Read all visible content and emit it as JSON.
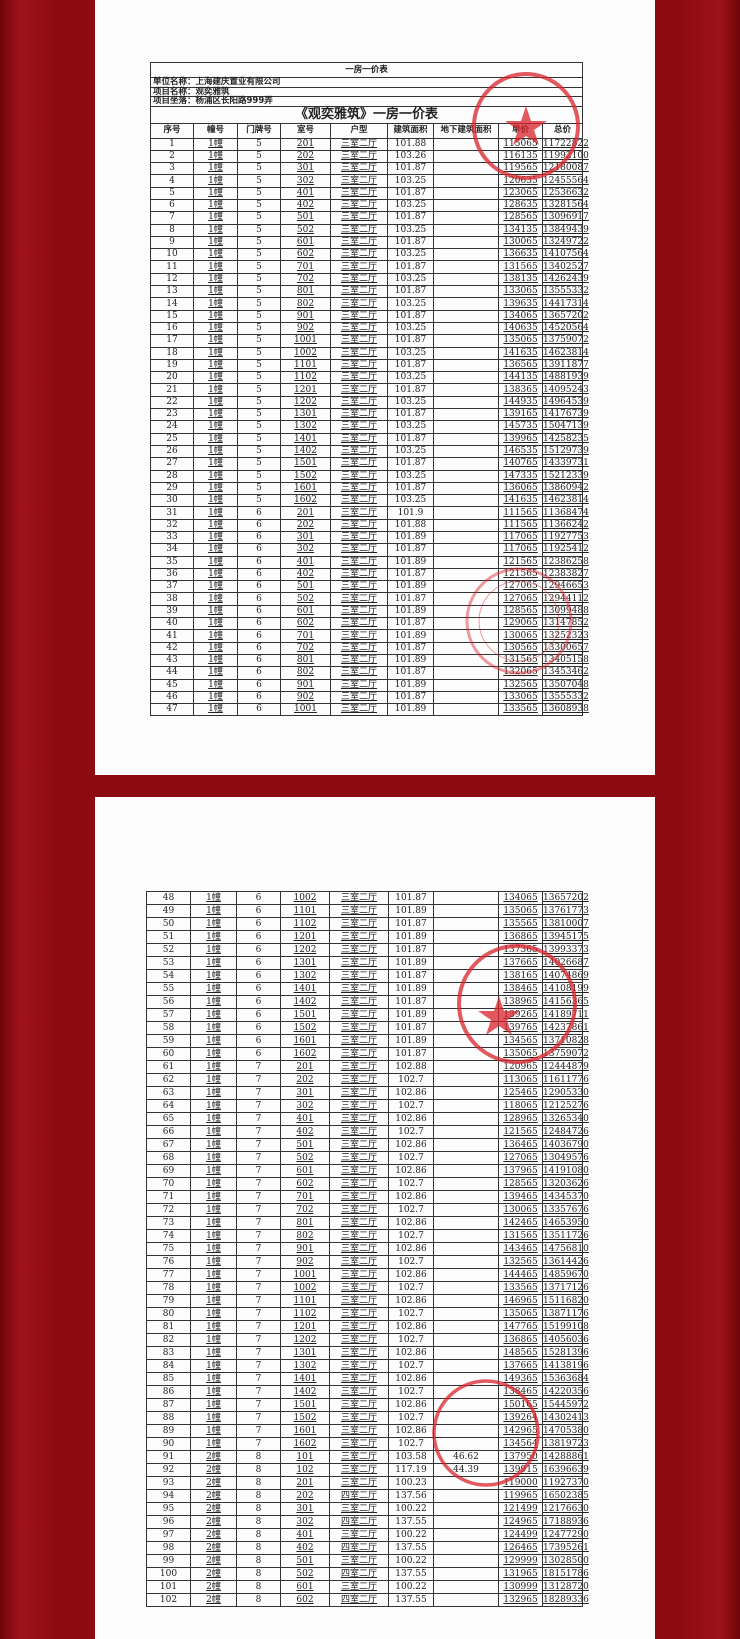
{
  "colors": {
    "background": "#8c0b10",
    "stamp": "#d8232a"
  },
  "header": {
    "sheet_title": "一房一价表",
    "company": "单位名称：上海建庆置业有限公司",
    "project": "项目名称：观奕雅筑",
    "address": "项目坐落：杨浦区长阳路999弄",
    "table_title": "《观奕雅筑》一房一价表"
  },
  "columns": [
    "序号",
    "幢号",
    "门牌号",
    "室号",
    "户型",
    "建筑面积",
    "地下建筑面积",
    "单价",
    "总价"
  ],
  "page1_rows": [
    [
      "1",
      "1幢",
      "5",
      "201",
      "三室二厅",
      "101.88",
      "",
      "115065",
      "11722822"
    ],
    [
      "2",
      "1幢",
      "5",
      "202",
      "三室二厅",
      "103.26",
      "",
      "116135",
      "11992100"
    ],
    [
      "3",
      "1幢",
      "5",
      "301",
      "三室二厅",
      "101.87",
      "",
      "119565",
      "12180087"
    ],
    [
      "4",
      "1幢",
      "5",
      "302",
      "三室二厅",
      "103.25",
      "",
      "120635",
      "12455564"
    ],
    [
      "5",
      "1幢",
      "5",
      "401",
      "三室二厅",
      "101.87",
      "",
      "123065",
      "12536632"
    ],
    [
      "6",
      "1幢",
      "5",
      "402",
      "三室二厅",
      "103.25",
      "",
      "128635",
      "13281564"
    ],
    [
      "7",
      "1幢",
      "5",
      "501",
      "三室二厅",
      "101.87",
      "",
      "128565",
      "13096917"
    ],
    [
      "8",
      "1幢",
      "5",
      "502",
      "三室二厅",
      "103.25",
      "",
      "134135",
      "13849439"
    ],
    [
      "9",
      "1幢",
      "5",
      "601",
      "三室二厅",
      "101.87",
      "",
      "130065",
      "13249722"
    ],
    [
      "10",
      "1幢",
      "5",
      "602",
      "三室二厅",
      "103.25",
      "",
      "136635",
      "14107564"
    ],
    [
      "11",
      "1幢",
      "5",
      "701",
      "三室二厅",
      "101.87",
      "",
      "131565",
      "13402527"
    ],
    [
      "12",
      "1幢",
      "5",
      "702",
      "三室二厅",
      "103.25",
      "",
      "138135",
      "14262439"
    ],
    [
      "13",
      "1幢",
      "5",
      "801",
      "三室二厅",
      "101.87",
      "",
      "133065",
      "13555332"
    ],
    [
      "14",
      "1幢",
      "5",
      "802",
      "三室二厅",
      "103.25",
      "",
      "139635",
      "14417314"
    ],
    [
      "15",
      "1幢",
      "5",
      "901",
      "三室二厅",
      "101.87",
      "",
      "134065",
      "13657202"
    ],
    [
      "16",
      "1幢",
      "5",
      "902",
      "三室二厅",
      "103.25",
      "",
      "140635",
      "14520564"
    ],
    [
      "17",
      "1幢",
      "5",
      "1001",
      "三室二厅",
      "101.87",
      "",
      "135065",
      "13759072"
    ],
    [
      "18",
      "1幢",
      "5",
      "1002",
      "三室二厅",
      "103.25",
      "",
      "141635",
      "14623814"
    ],
    [
      "19",
      "1幢",
      "5",
      "1101",
      "三室二厅",
      "101.87",
      "",
      "136565",
      "13911877"
    ],
    [
      "20",
      "1幢",
      "5",
      "1102",
      "三室二厅",
      "103.25",
      "",
      "144135",
      "14881939"
    ],
    [
      "21",
      "1幢",
      "5",
      "1201",
      "三室二厅",
      "101.87",
      "",
      "138365",
      "14095243"
    ],
    [
      "22",
      "1幢",
      "5",
      "1202",
      "三室二厅",
      "103.25",
      "",
      "144935",
      "14964539"
    ],
    [
      "23",
      "1幢",
      "5",
      "1301",
      "三室二厅",
      "101.87",
      "",
      "139165",
      "14176739"
    ],
    [
      "24",
      "1幢",
      "5",
      "1302",
      "三室二厅",
      "103.25",
      "",
      "145735",
      "15047139"
    ],
    [
      "25",
      "1幢",
      "5",
      "1401",
      "三室二厅",
      "101.87",
      "",
      "139965",
      "14258235"
    ],
    [
      "26",
      "1幢",
      "5",
      "1402",
      "三室二厅",
      "103.25",
      "",
      "146535",
      "15129739"
    ],
    [
      "27",
      "1幢",
      "5",
      "1501",
      "三室二厅",
      "101.87",
      "",
      "140765",
      "14339731"
    ],
    [
      "28",
      "1幢",
      "5",
      "1502",
      "三室二厅",
      "103.25",
      "",
      "147335",
      "15212339"
    ],
    [
      "29",
      "1幢",
      "5",
      "1601",
      "三室二厅",
      "101.87",
      "",
      "136065",
      "13860942"
    ],
    [
      "30",
      "1幢",
      "5",
      "1602",
      "三室二厅",
      "103.25",
      "",
      "141635",
      "14623814"
    ],
    [
      "31",
      "1幢",
      "6",
      "201",
      "三室二厅",
      "101.9",
      "",
      "111565",
      "11368474"
    ],
    [
      "32",
      "1幢",
      "6",
      "202",
      "三室二厅",
      "101.88",
      "",
      "111565",
      "11366242"
    ],
    [
      "33",
      "1幢",
      "6",
      "301",
      "三室二厅",
      "101.89",
      "",
      "117065",
      "11927753"
    ],
    [
      "34",
      "1幢",
      "6",
      "302",
      "三室二厅",
      "101.87",
      "",
      "117065",
      "11925412"
    ],
    [
      "35",
      "1幢",
      "6",
      "401",
      "三室二厅",
      "101.89",
      "",
      "121565",
      "12386258"
    ],
    [
      "36",
      "1幢",
      "6",
      "402",
      "三室二厅",
      "101.87",
      "",
      "121565",
      "12383827"
    ],
    [
      "37",
      "1幢",
      "6",
      "501",
      "三室二厅",
      "101.89",
      "",
      "127065",
      "12946653"
    ],
    [
      "38",
      "1幢",
      "6",
      "502",
      "三室二厅",
      "101.87",
      "",
      "127065",
      "12944112"
    ],
    [
      "39",
      "1幢",
      "6",
      "601",
      "三室二厅",
      "101.89",
      "",
      "128565",
      "13099488"
    ],
    [
      "40",
      "1幢",
      "6",
      "602",
      "三室二厅",
      "101.87",
      "",
      "129065",
      "13147852"
    ],
    [
      "41",
      "1幢",
      "6",
      "701",
      "三室二厅",
      "101.89",
      "",
      "130065",
      "13252323"
    ],
    [
      "42",
      "1幢",
      "6",
      "702",
      "三室二厅",
      "101.87",
      "",
      "130565",
      "13300657"
    ],
    [
      "43",
      "1幢",
      "6",
      "801",
      "三室二厅",
      "101.89",
      "",
      "131565",
      "13405158"
    ],
    [
      "44",
      "1幢",
      "6",
      "802",
      "三室二厅",
      "101.87",
      "",
      "132065",
      "13453462"
    ],
    [
      "45",
      "1幢",
      "6",
      "901",
      "三室二厅",
      "101.89",
      "",
      "132565",
      "13507048"
    ],
    [
      "46",
      "1幢",
      "6",
      "902",
      "三室二厅",
      "101.87",
      "",
      "133065",
      "13555332"
    ],
    [
      "47",
      "1幢",
      "6",
      "1001",
      "三室二厅",
      "101.89",
      "",
      "133565",
      "13608938"
    ]
  ],
  "page2_rows": [
    [
      "48",
      "1幢",
      "6",
      "1002",
      "三室二厅",
      "101.87",
      "",
      "134065",
      "13657202"
    ],
    [
      "49",
      "1幢",
      "6",
      "1101",
      "三室二厅",
      "101.89",
      "",
      "135065",
      "13761773"
    ],
    [
      "50",
      "1幢",
      "6",
      "1102",
      "三室二厅",
      "101.87",
      "",
      "135565",
      "13810007"
    ],
    [
      "51",
      "1幢",
      "6",
      "1201",
      "三室二厅",
      "101.89",
      "",
      "136865",
      "13945175"
    ],
    [
      "52",
      "1幢",
      "6",
      "1202",
      "三室二厅",
      "101.87",
      "",
      "137365",
      "13993373"
    ],
    [
      "53",
      "1幢",
      "6",
      "1301",
      "三室二厅",
      "101.89",
      "",
      "137665",
      "14026687"
    ],
    [
      "54",
      "1幢",
      "6",
      "1302",
      "三室二厅",
      "101.87",
      "",
      "138165",
      "14074869"
    ],
    [
      "55",
      "1幢",
      "6",
      "1401",
      "三室二厅",
      "101.89",
      "",
      "138465",
      "14108199"
    ],
    [
      "56",
      "1幢",
      "6",
      "1402",
      "三室二厅",
      "101.87",
      "",
      "138965",
      "14156365"
    ],
    [
      "57",
      "1幢",
      "6",
      "1501",
      "三室二厅",
      "101.89",
      "",
      "139265",
      "14189711"
    ],
    [
      "58",
      "1幢",
      "6",
      "1502",
      "三室二厅",
      "101.87",
      "",
      "139765",
      "14237861"
    ],
    [
      "59",
      "1幢",
      "6",
      "1601",
      "三室二厅",
      "101.89",
      "",
      "134565",
      "13710828"
    ],
    [
      "60",
      "1幢",
      "6",
      "1602",
      "三室二厅",
      "101.87",
      "",
      "135065",
      "13759072"
    ],
    [
      "61",
      "1幢",
      "7",
      "201",
      "三室二厅",
      "102.88",
      "",
      "120965",
      "12444879"
    ],
    [
      "62",
      "1幢",
      "7",
      "202",
      "三室二厅",
      "102.7",
      "",
      "113065",
      "11611776"
    ],
    [
      "63",
      "1幢",
      "7",
      "301",
      "三室二厅",
      "102.86",
      "",
      "125465",
      "12905330"
    ],
    [
      "64",
      "1幢",
      "7",
      "302",
      "三室二厅",
      "102.7",
      "",
      "118065",
      "12125276"
    ],
    [
      "65",
      "1幢",
      "7",
      "401",
      "三室二厅",
      "102.86",
      "",
      "128965",
      "13265340"
    ],
    [
      "66",
      "1幢",
      "7",
      "402",
      "三室二厅",
      "102.7",
      "",
      "121565",
      "12484726"
    ],
    [
      "67",
      "1幢",
      "7",
      "501",
      "三室二厅",
      "102.86",
      "",
      "136465",
      "14036790"
    ],
    [
      "68",
      "1幢",
      "7",
      "502",
      "三室二厅",
      "102.7",
      "",
      "127065",
      "13049576"
    ],
    [
      "69",
      "1幢",
      "7",
      "601",
      "三室二厅",
      "102.86",
      "",
      "137965",
      "14191080"
    ],
    [
      "70",
      "1幢",
      "7",
      "602",
      "三室二厅",
      "102.7",
      "",
      "128565",
      "13203626"
    ],
    [
      "71",
      "1幢",
      "7",
      "701",
      "三室二厅",
      "102.86",
      "",
      "139465",
      "14345370"
    ],
    [
      "72",
      "1幢",
      "7",
      "702",
      "三室二厅",
      "102.7",
      "",
      "130065",
      "13357676"
    ],
    [
      "73",
      "1幢",
      "7",
      "801",
      "三室二厅",
      "102.86",
      "",
      "142465",
      "14653950"
    ],
    [
      "74",
      "1幢",
      "7",
      "802",
      "三室二厅",
      "102.7",
      "",
      "131565",
      "13511726"
    ],
    [
      "75",
      "1幢",
      "7",
      "901",
      "三室二厅",
      "102.86",
      "",
      "143465",
      "14756810"
    ],
    [
      "76",
      "1幢",
      "7",
      "902",
      "三室二厅",
      "102.7",
      "",
      "132565",
      "13614426"
    ],
    [
      "77",
      "1幢",
      "7",
      "1001",
      "三室二厅",
      "102.86",
      "",
      "144465",
      "14859670"
    ],
    [
      "78",
      "1幢",
      "7",
      "1002",
      "三室二厅",
      "102.7",
      "",
      "133565",
      "13717126"
    ],
    [
      "79",
      "1幢",
      "7",
      "1101",
      "三室二厅",
      "102.86",
      "",
      "146965",
      "15116820"
    ],
    [
      "80",
      "1幢",
      "7",
      "1102",
      "三室二厅",
      "102.7",
      "",
      "135065",
      "13871176"
    ],
    [
      "81",
      "1幢",
      "7",
      "1201",
      "三室二厅",
      "102.86",
      "",
      "147765",
      "15199108"
    ],
    [
      "82",
      "1幢",
      "7",
      "1202",
      "三室二厅",
      "102.7",
      "",
      "136865",
      "14056036"
    ],
    [
      "83",
      "1幢",
      "7",
      "1301",
      "三室二厅",
      "102.86",
      "",
      "148565",
      "15281396"
    ],
    [
      "84",
      "1幢",
      "7",
      "1302",
      "三室二厅",
      "102.7",
      "",
      "137665",
      "14138196"
    ],
    [
      "85",
      "1幢",
      "7",
      "1401",
      "三室二厅",
      "102.86",
      "",
      "149365",
      "15363684"
    ],
    [
      "86",
      "1幢",
      "7",
      "1402",
      "三室二厅",
      "102.7",
      "",
      "138465",
      "14220356"
    ],
    [
      "87",
      "1幢",
      "7",
      "1501",
      "三室二厅",
      "102.86",
      "",
      "150165",
      "15445972"
    ],
    [
      "88",
      "1幢",
      "7",
      "1502",
      "三室二厅",
      "102.7",
      "",
      "139264",
      "14302413"
    ],
    [
      "89",
      "1幢",
      "7",
      "1601",
      "三室二厅",
      "102.86",
      "",
      "142965",
      "14705380"
    ],
    [
      "90",
      "1幢",
      "7",
      "1602",
      "三室二厅",
      "102.7",
      "",
      "134564",
      "13819723"
    ],
    [
      "91",
      "2幢",
      "8",
      "101",
      "三室二厅",
      "103.58",
      "46.62",
      "137950",
      "14288861"
    ],
    [
      "92",
      "2幢",
      "8",
      "102",
      "三室二厅",
      "117.19",
      "44.39",
      "139915",
      "16396639"
    ],
    [
      "93",
      "2幢",
      "8",
      "201",
      "三室二厅",
      "100.23",
      "",
      "119000",
      "11927370"
    ],
    [
      "94",
      "2幢",
      "8",
      "202",
      "四室二厅",
      "137.56",
      "",
      "119965",
      "16502385"
    ],
    [
      "95",
      "2幢",
      "8",
      "301",
      "三室二厅",
      "100.22",
      "",
      "121499",
      "12176630"
    ],
    [
      "96",
      "2幢",
      "8",
      "302",
      "四室二厅",
      "137.55",
      "",
      "124965",
      "17188936"
    ],
    [
      "97",
      "2幢",
      "8",
      "401",
      "三室二厅",
      "100.22",
      "",
      "124499",
      "12477290"
    ],
    [
      "98",
      "2幢",
      "8",
      "402",
      "四室二厅",
      "137.55",
      "",
      "126465",
      "17395261"
    ],
    [
      "99",
      "2幢",
      "8",
      "501",
      "三室二厅",
      "100.22",
      "",
      "129999",
      "13028500"
    ],
    [
      "100",
      "2幢",
      "8",
      "502",
      "四室二厅",
      "137.55",
      "",
      "131965",
      "18151786"
    ],
    [
      "101",
      "2幢",
      "8",
      "601",
      "三室二厅",
      "100.22",
      "",
      "130999",
      "13128720"
    ],
    [
      "102",
      "2幢",
      "8",
      "602",
      "四室二厅",
      "137.55",
      "",
      "132965",
      "18289336"
    ]
  ]
}
